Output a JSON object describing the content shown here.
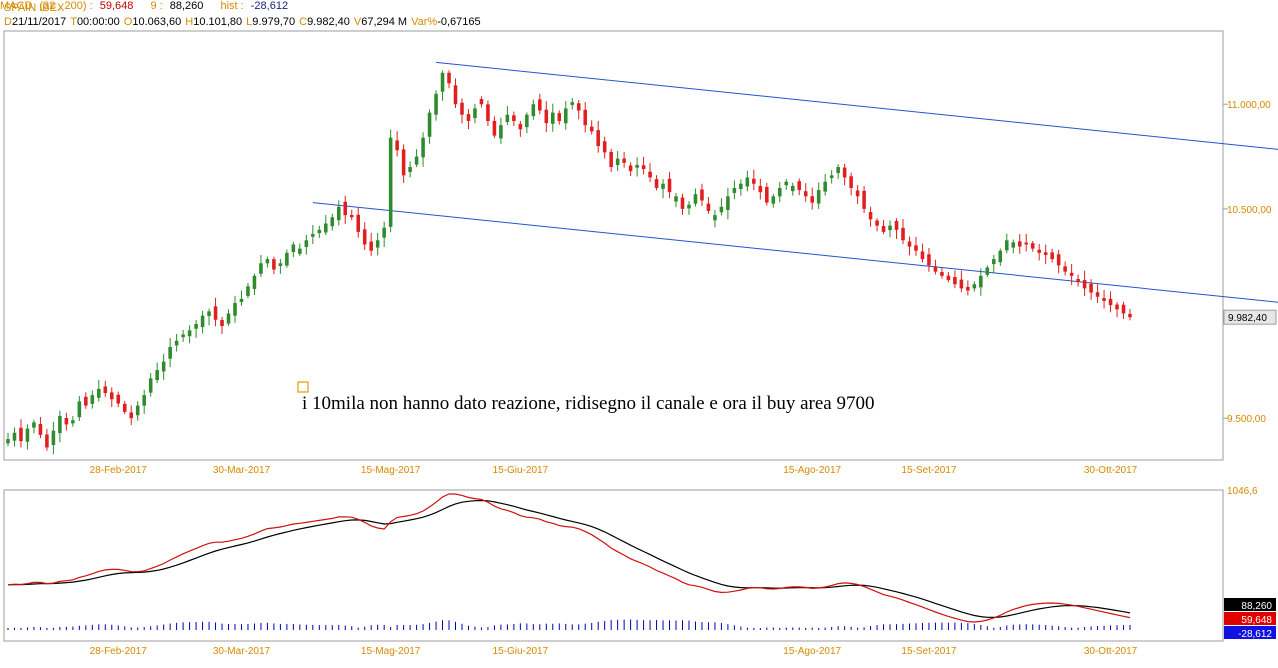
{
  "header": {
    "title": "SPAIN IBEX",
    "fields": [
      {
        "k": "D",
        "v": "21/11/2017"
      },
      {
        "k": "T",
        "v": "00:00:00"
      },
      {
        "k": "O",
        "v": "10.063,60"
      },
      {
        "k": "H",
        "v": "10.101,80"
      },
      {
        "k": "L",
        "v": "9.979,70"
      },
      {
        "k": "C",
        "v": "9.982,40"
      },
      {
        "k": "V",
        "v": "67,294 M"
      },
      {
        "k": "Var%",
        "v": "-0,67165"
      }
    ]
  },
  "macd_header": {
    "name": "MACD",
    "params": "(32 , 200) :",
    "macd": "59,648",
    "signal_label": "9 :",
    "signal": "88,260",
    "hist_label": "hist :",
    "hist": "-28,612"
  },
  "annotation": "i 10mila non hanno dato reazione, ridisegno il canale e ora il buy area 9700",
  "colors": {
    "up": "#2e8b2e",
    "down": "#e02020",
    "channel": "#2255cc",
    "axis": "#d68a00",
    "macd": "#d01010",
    "signal": "#000000",
    "hist": "#0000b0"
  },
  "chart_data": [
    {
      "type": "candlestick",
      "title": "SPAIN IBEX",
      "ylim": [
        9300,
        11350
      ],
      "y_ticks": [
        "11.000,00",
        "10.500,00",
        "9.500,00"
      ],
      "y_tick_values": [
        11000,
        10500,
        9500
      ],
      "x_tick_labels": [
        "28-Feb-2017",
        "30-Mar-2017",
        "15-Mag-2017",
        "15-Giu-2017",
        "15-Ago-2017",
        "15-Set-2017",
        "30-Ott-2017"
      ],
      "x_tick_index": [
        17,
        36,
        59,
        79,
        124,
        142,
        170
      ],
      "last_value_label": "9.982,40",
      "last_value": 9982.4,
      "close": [
        9400,
        9430,
        9390,
        9450,
        9480,
        9420,
        9360,
        9440,
        9510,
        9470,
        9490,
        9580,
        9560,
        9610,
        9640,
        9620,
        9590,
        9570,
        9530,
        9500,
        9560,
        9610,
        9690,
        9730,
        9770,
        9840,
        9870,
        9900,
        9920,
        9950,
        9990,
        10010,
        9970,
        9940,
        10000,
        10050,
        10070,
        10130,
        10180,
        10240,
        10260,
        10210,
        10240,
        10290,
        10330,
        10310,
        10350,
        10380,
        10400,
        10430,
        10460,
        10510,
        10470,
        10460,
        10390,
        10330,
        10300,
        10350,
        10410,
        10840,
        10780,
        10660,
        10700,
        10750,
        10840,
        10960,
        11050,
        11150,
        11100,
        11000,
        10950,
        10920,
        10980,
        11000,
        10920,
        10850,
        10900,
        10950,
        10920,
        10880,
        10950,
        11000,
        10970,
        10910,
        10960,
        10920,
        10980,
        11010,
        10970,
        10900,
        10870,
        10800,
        10770,
        10700,
        10740,
        10720,
        10680,
        10710,
        10690,
        10650,
        10600,
        10620,
        10580,
        10560,
        10500,
        10520,
        10570,
        10540,
        10490,
        10470,
        10510,
        10560,
        10600,
        10620,
        10650,
        10620,
        10580,
        10530,
        10560,
        10600,
        10630,
        10610,
        10590,
        10560,
        10530,
        10590,
        10630,
        10660,
        10700,
        10650,
        10600,
        10560,
        10500,
        10450,
        10420,
        10390,
        10420,
        10400,
        10350,
        10320,
        10300,
        10260,
        10230,
        10200,
        10180,
        10160,
        10140,
        10120,
        10110,
        10140,
        10180,
        10220,
        10260,
        10300,
        10350,
        10340,
        10320,
        10330,
        10310,
        10290,
        10280,
        10260,
        10230,
        10200,
        10180,
        10150,
        10120,
        10100,
        10080,
        10060,
        10040,
        10020,
        10000,
        9982.4
      ]
    },
    {
      "type": "line",
      "title": "MACD",
      "y_tick": "1046,6",
      "series": [
        {
          "name": "MACD",
          "last": 59.648
        },
        {
          "name": "9",
          "last": 88.26
        },
        {
          "name": "hist",
          "last": -28.612
        }
      ]
    }
  ]
}
